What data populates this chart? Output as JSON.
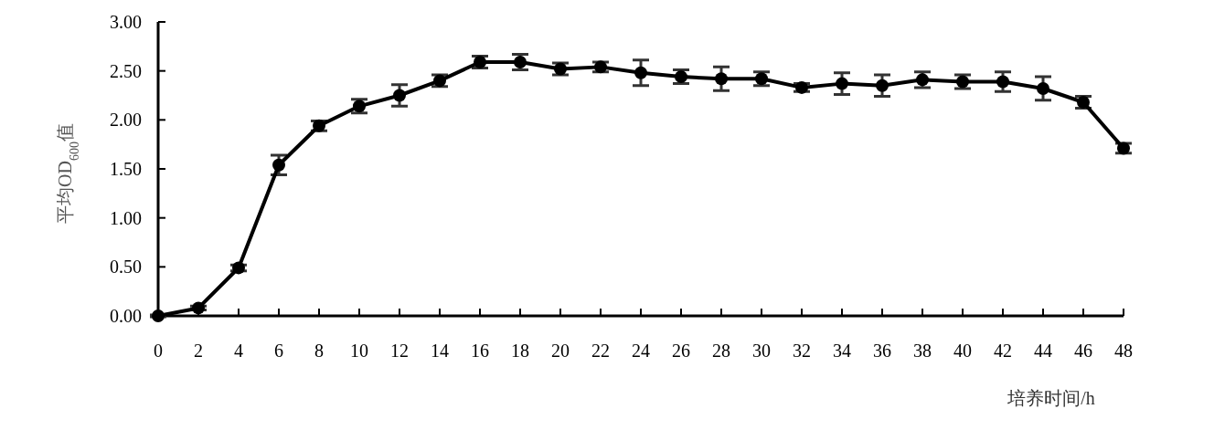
{
  "chart_data": {
    "type": "line",
    "xlabel": "培养时间/h",
    "ylabel": "平均OD$_{600}$值",
    "x": [
      0,
      2,
      4,
      6,
      8,
      10,
      12,
      14,
      16,
      18,
      20,
      22,
      24,
      26,
      28,
      30,
      32,
      34,
      36,
      38,
      40,
      42,
      44,
      46,
      48
    ],
    "values": [
      0,
      0.08,
      0.49,
      1.54,
      1.94,
      2.14,
      2.25,
      2.4,
      2.59,
      2.59,
      2.52,
      2.54,
      2.48,
      2.44,
      2.42,
      2.42,
      2.33,
      2.37,
      2.35,
      2.41,
      2.39,
      2.39,
      2.32,
      2.18,
      1.71
    ],
    "errors": [
      0.01,
      0.02,
      0.03,
      0.1,
      0.05,
      0.07,
      0.11,
      0.06,
      0.06,
      0.08,
      0.06,
      0.05,
      0.13,
      0.07,
      0.12,
      0.07,
      0.04,
      0.11,
      0.11,
      0.08,
      0.07,
      0.1,
      0.12,
      0.06,
      0.05
    ],
    "color": "#000000",
    "marker": "circle",
    "line_style": "solid",
    "xlim": [
      0,
      48
    ],
    "xticks": [
      0,
      2,
      4,
      6,
      8,
      10,
      12,
      14,
      16,
      18,
      20,
      22,
      24,
      26,
      28,
      30,
      32,
      34,
      36,
      38,
      40,
      42,
      44,
      46,
      48
    ],
    "ylim": [
      0,
      3
    ],
    "yticks": [
      {
        "value": 0,
        "label": "0.00"
      },
      {
        "value": 0.5,
        "label": "0.50"
      },
      {
        "value": 1,
        "label": "1.00"
      },
      {
        "value": 1.5,
        "label": "1.50"
      },
      {
        "value": 2,
        "label": "2.00"
      },
      {
        "value": 2.5,
        "label": "2.50"
      },
      {
        "value": 3,
        "label": "3.00"
      }
    ]
  }
}
